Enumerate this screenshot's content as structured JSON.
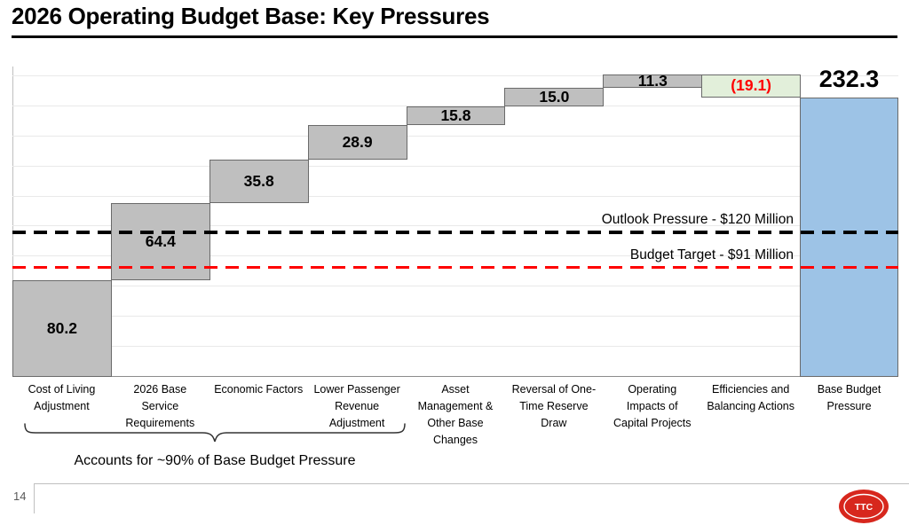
{
  "slide": {
    "title": "2026 Operating Budget Base: Key Pressures",
    "page_number": "14",
    "bracket_note": "Accounts for ~90% of Base Budget Pressure",
    "logo_text": "TTC"
  },
  "chart_data": {
    "type": "bar",
    "subtype": "waterfall",
    "title": "2026 Operating Budget Base: Key Pressures",
    "categories": [
      "Cost of Living Adjustment",
      "2026 Base Service Requirements",
      "Economic Factors",
      "Lower Passenger Revenue Adjustment",
      "Asset Management & Other Base Changes",
      "Reversal of One-Time Reserve Draw",
      "Operating Impacts of Capital Projects",
      "Efficiencies and Balancing Actions",
      "Base Budget Pressure"
    ],
    "category_lines": [
      [
        "Cost of Living",
        "Adjustment"
      ],
      [
        "2026 Base",
        "Service",
        "Requirements"
      ],
      [
        "Economic Factors"
      ],
      [
        "Lower Passenger",
        "Revenue",
        "Adjustment"
      ],
      [
        "Asset",
        "Management &",
        "Other Base",
        "Changes"
      ],
      [
        "Reversal of One-",
        "Time Reserve",
        "Draw"
      ],
      [
        "Operating",
        "Impacts of",
        "Capital Projects"
      ],
      [
        "Efficiencies and",
        "Balancing Actions"
      ],
      [
        "Base Budget",
        "Pressure"
      ]
    ],
    "values": [
      80.2,
      64.4,
      35.8,
      28.9,
      15.8,
      15.0,
      11.3,
      -19.1,
      232.3
    ],
    "value_labels": [
      "80.2",
      "64.4",
      "35.8",
      "28.9",
      "15.8",
      "15.0",
      "11.3",
      "(19.1)",
      "232.3"
    ],
    "bar_kinds": [
      "increase",
      "increase",
      "increase",
      "increase",
      "increase",
      "increase",
      "increase",
      "decrease",
      "total"
    ],
    "ylim": [
      0,
      258
    ],
    "grid": true,
    "grid_step": 25,
    "legend": "none",
    "reference_lines": [
      {
        "label": "Outlook Pressure - $120 Million",
        "value": 120,
        "color": "#000000",
        "thickness": 4
      },
      {
        "label": "Budget Target - $91 Million",
        "value": 91,
        "color": "#FF0000",
        "thickness": 3
      }
    ],
    "colors": {
      "increase_fill": "#BFBFBF",
      "decrease_fill": "#E2EFDA",
      "total_fill": "#9DC3E6",
      "bar_border": "#6a6a6a",
      "decrease_label": "#FF0000",
      "value_label": "#000000",
      "gridline": "#E9E9E9",
      "axis": "#BFBFBF"
    }
  }
}
